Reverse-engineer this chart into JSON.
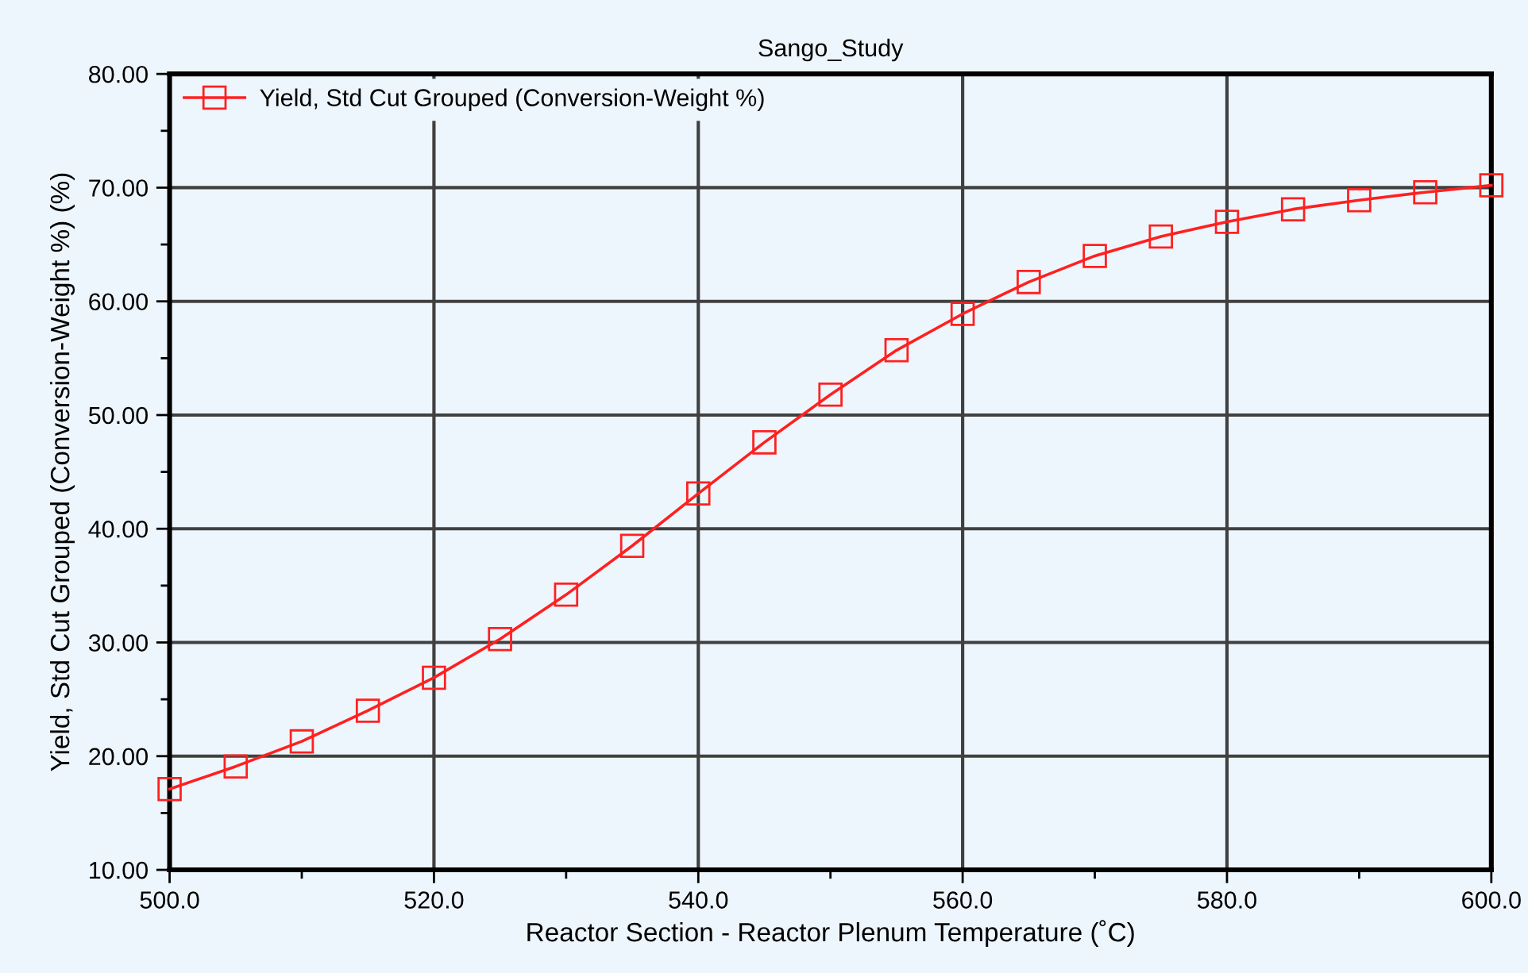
{
  "chart_data": {
    "type": "line",
    "title": "Sango_Study",
    "xlabel": "Reactor Section - Reactor Plenum Temperature (˚C)",
    "ylabel": "Yield, Std Cut Grouped (Conversion-Weight %) (%)",
    "x": [
      500,
      505,
      510,
      515,
      520,
      525,
      530,
      535,
      540,
      545,
      550,
      555,
      560,
      565,
      570,
      575,
      580,
      585,
      590,
      595,
      600
    ],
    "series": [
      {
        "name": "Yield, Std Cut Grouped (Conversion-Weight %)",
        "color": "#ff2020",
        "values": [
          17.1,
          19.1,
          21.3,
          24.0,
          26.9,
          30.3,
          34.2,
          38.5,
          43.1,
          47.6,
          51.8,
          55.7,
          58.9,
          61.7,
          64.0,
          65.7,
          67.0,
          68.1,
          68.9,
          69.6,
          70.2
        ]
      }
    ],
    "xlim": [
      500,
      600
    ],
    "xticks": [
      {
        "value": 500,
        "label": "500.0"
      },
      {
        "value": 520,
        "label": "520.0"
      },
      {
        "value": 540,
        "label": "540.0"
      },
      {
        "value": 560,
        "label": "560.0"
      },
      {
        "value": 580,
        "label": "580.0"
      },
      {
        "value": 600,
        "label": "600.0"
      }
    ],
    "ylim": [
      10,
      80
    ],
    "yticks": [
      {
        "value": 10,
        "label": "10.00"
      },
      {
        "value": 20,
        "label": "20.00"
      },
      {
        "value": 30,
        "label": "30.00"
      },
      {
        "value": 40,
        "label": "40.00"
      },
      {
        "value": 50,
        "label": "50.00"
      },
      {
        "value": 60,
        "label": "60.00"
      },
      {
        "value": 70,
        "label": "70.00"
      },
      {
        "value": 80,
        "label": "80.00"
      }
    ],
    "grid": true,
    "legend": "top left",
    "marker": "square",
    "line_style": "solid"
  }
}
